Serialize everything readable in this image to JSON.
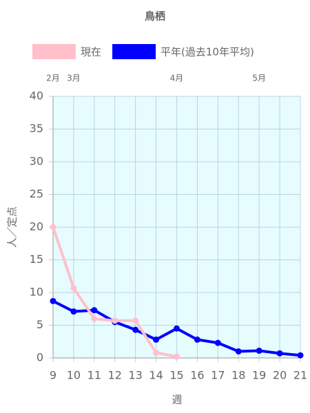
{
  "chart_data": {
    "type": "line",
    "title": "鳥栖",
    "x_label": "週",
    "y_label": "人／定点",
    "x": [
      9,
      10,
      11,
      12,
      13,
      14,
      15,
      16,
      17,
      18,
      19,
      20,
      21
    ],
    "series": [
      {
        "name": "現在",
        "color": "#ffc0cb",
        "values": [
          20,
          10.7,
          6,
          5.7,
          5.7,
          0.8,
          0.2,
          null,
          null,
          null,
          null,
          null,
          null
        ]
      },
      {
        "name": "平年(過去10年平均)",
        "color": "#0000ff",
        "values": [
          8.7,
          7.1,
          7.3,
          5.5,
          4.3,
          2.8,
          4.5,
          2.8,
          2.3,
          1.0,
          1.1,
          0.7,
          0.4
        ]
      }
    ],
    "xlim": [
      9,
      21
    ],
    "xticks": [
      9,
      10,
      11,
      12,
      13,
      14,
      15,
      16,
      17,
      18,
      19,
      20,
      21
    ],
    "ylim": [
      0,
      40
    ],
    "yticks": [
      0,
      5,
      10,
      15,
      20,
      25,
      30,
      35,
      40
    ],
    "month_labels": [
      {
        "label": "2月",
        "x": 9
      },
      {
        "label": "3月",
        "x": 10
      },
      {
        "label": "4月",
        "x": 15
      },
      {
        "label": "5月",
        "x": 19
      }
    ],
    "grid": true,
    "legend": "top",
    "plot_background": "#e6fcff"
  }
}
